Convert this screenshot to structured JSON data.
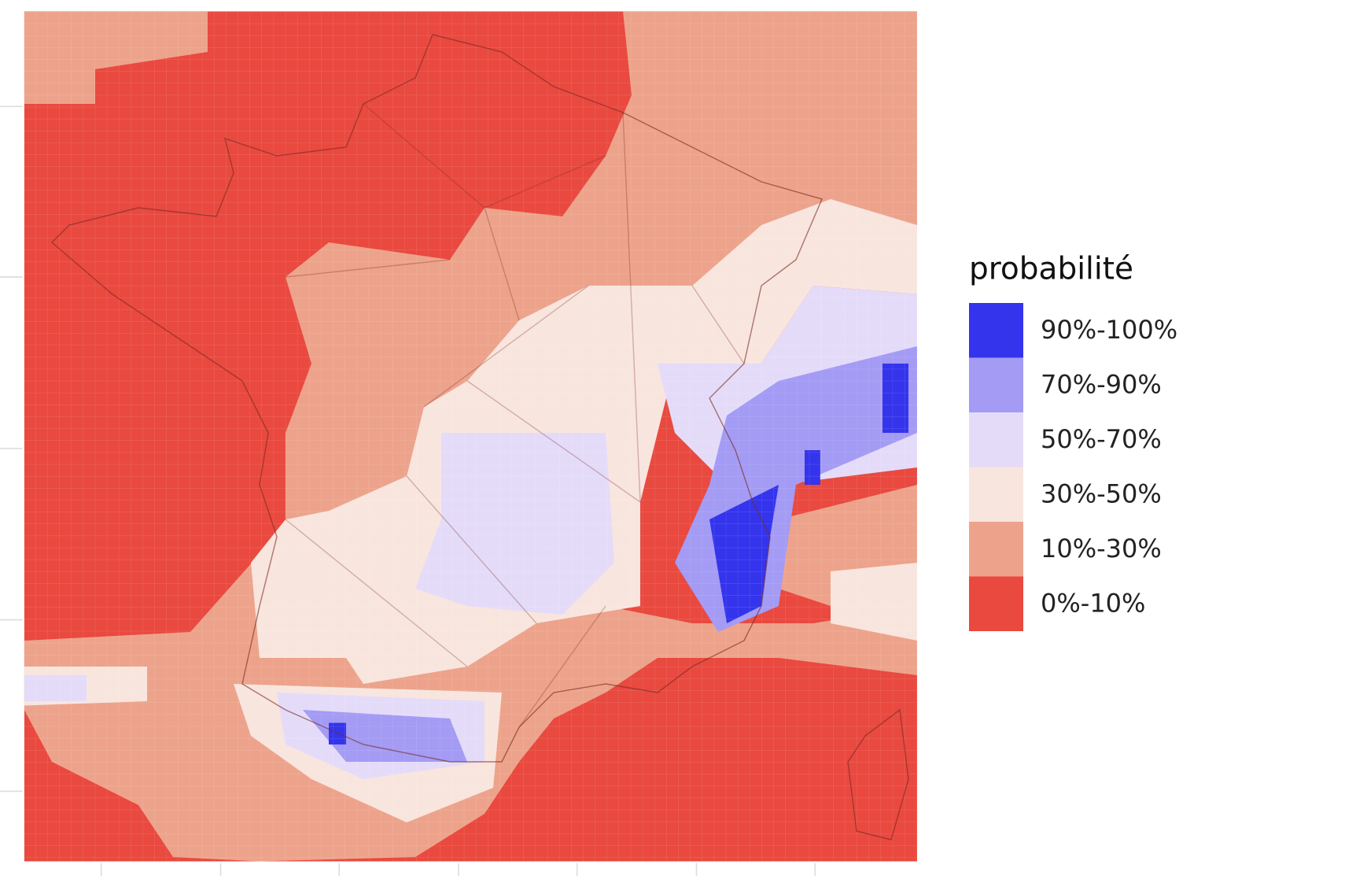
{
  "legend": {
    "title": "probabilité",
    "items": [
      {
        "label": "90%-100%",
        "color": "#3434ec"
      },
      {
        "label": "70%-90%",
        "color": "#a39bf4"
      },
      {
        "label": "50%-70%",
        "color": "#e4dbf9"
      },
      {
        "label": "30%-50%",
        "color": "#f8e5de"
      },
      {
        "label": "10%-30%",
        "color": "#eda38b"
      },
      {
        "label": "0%-10%",
        "color": "#e9493f"
      }
    ]
  }
}
